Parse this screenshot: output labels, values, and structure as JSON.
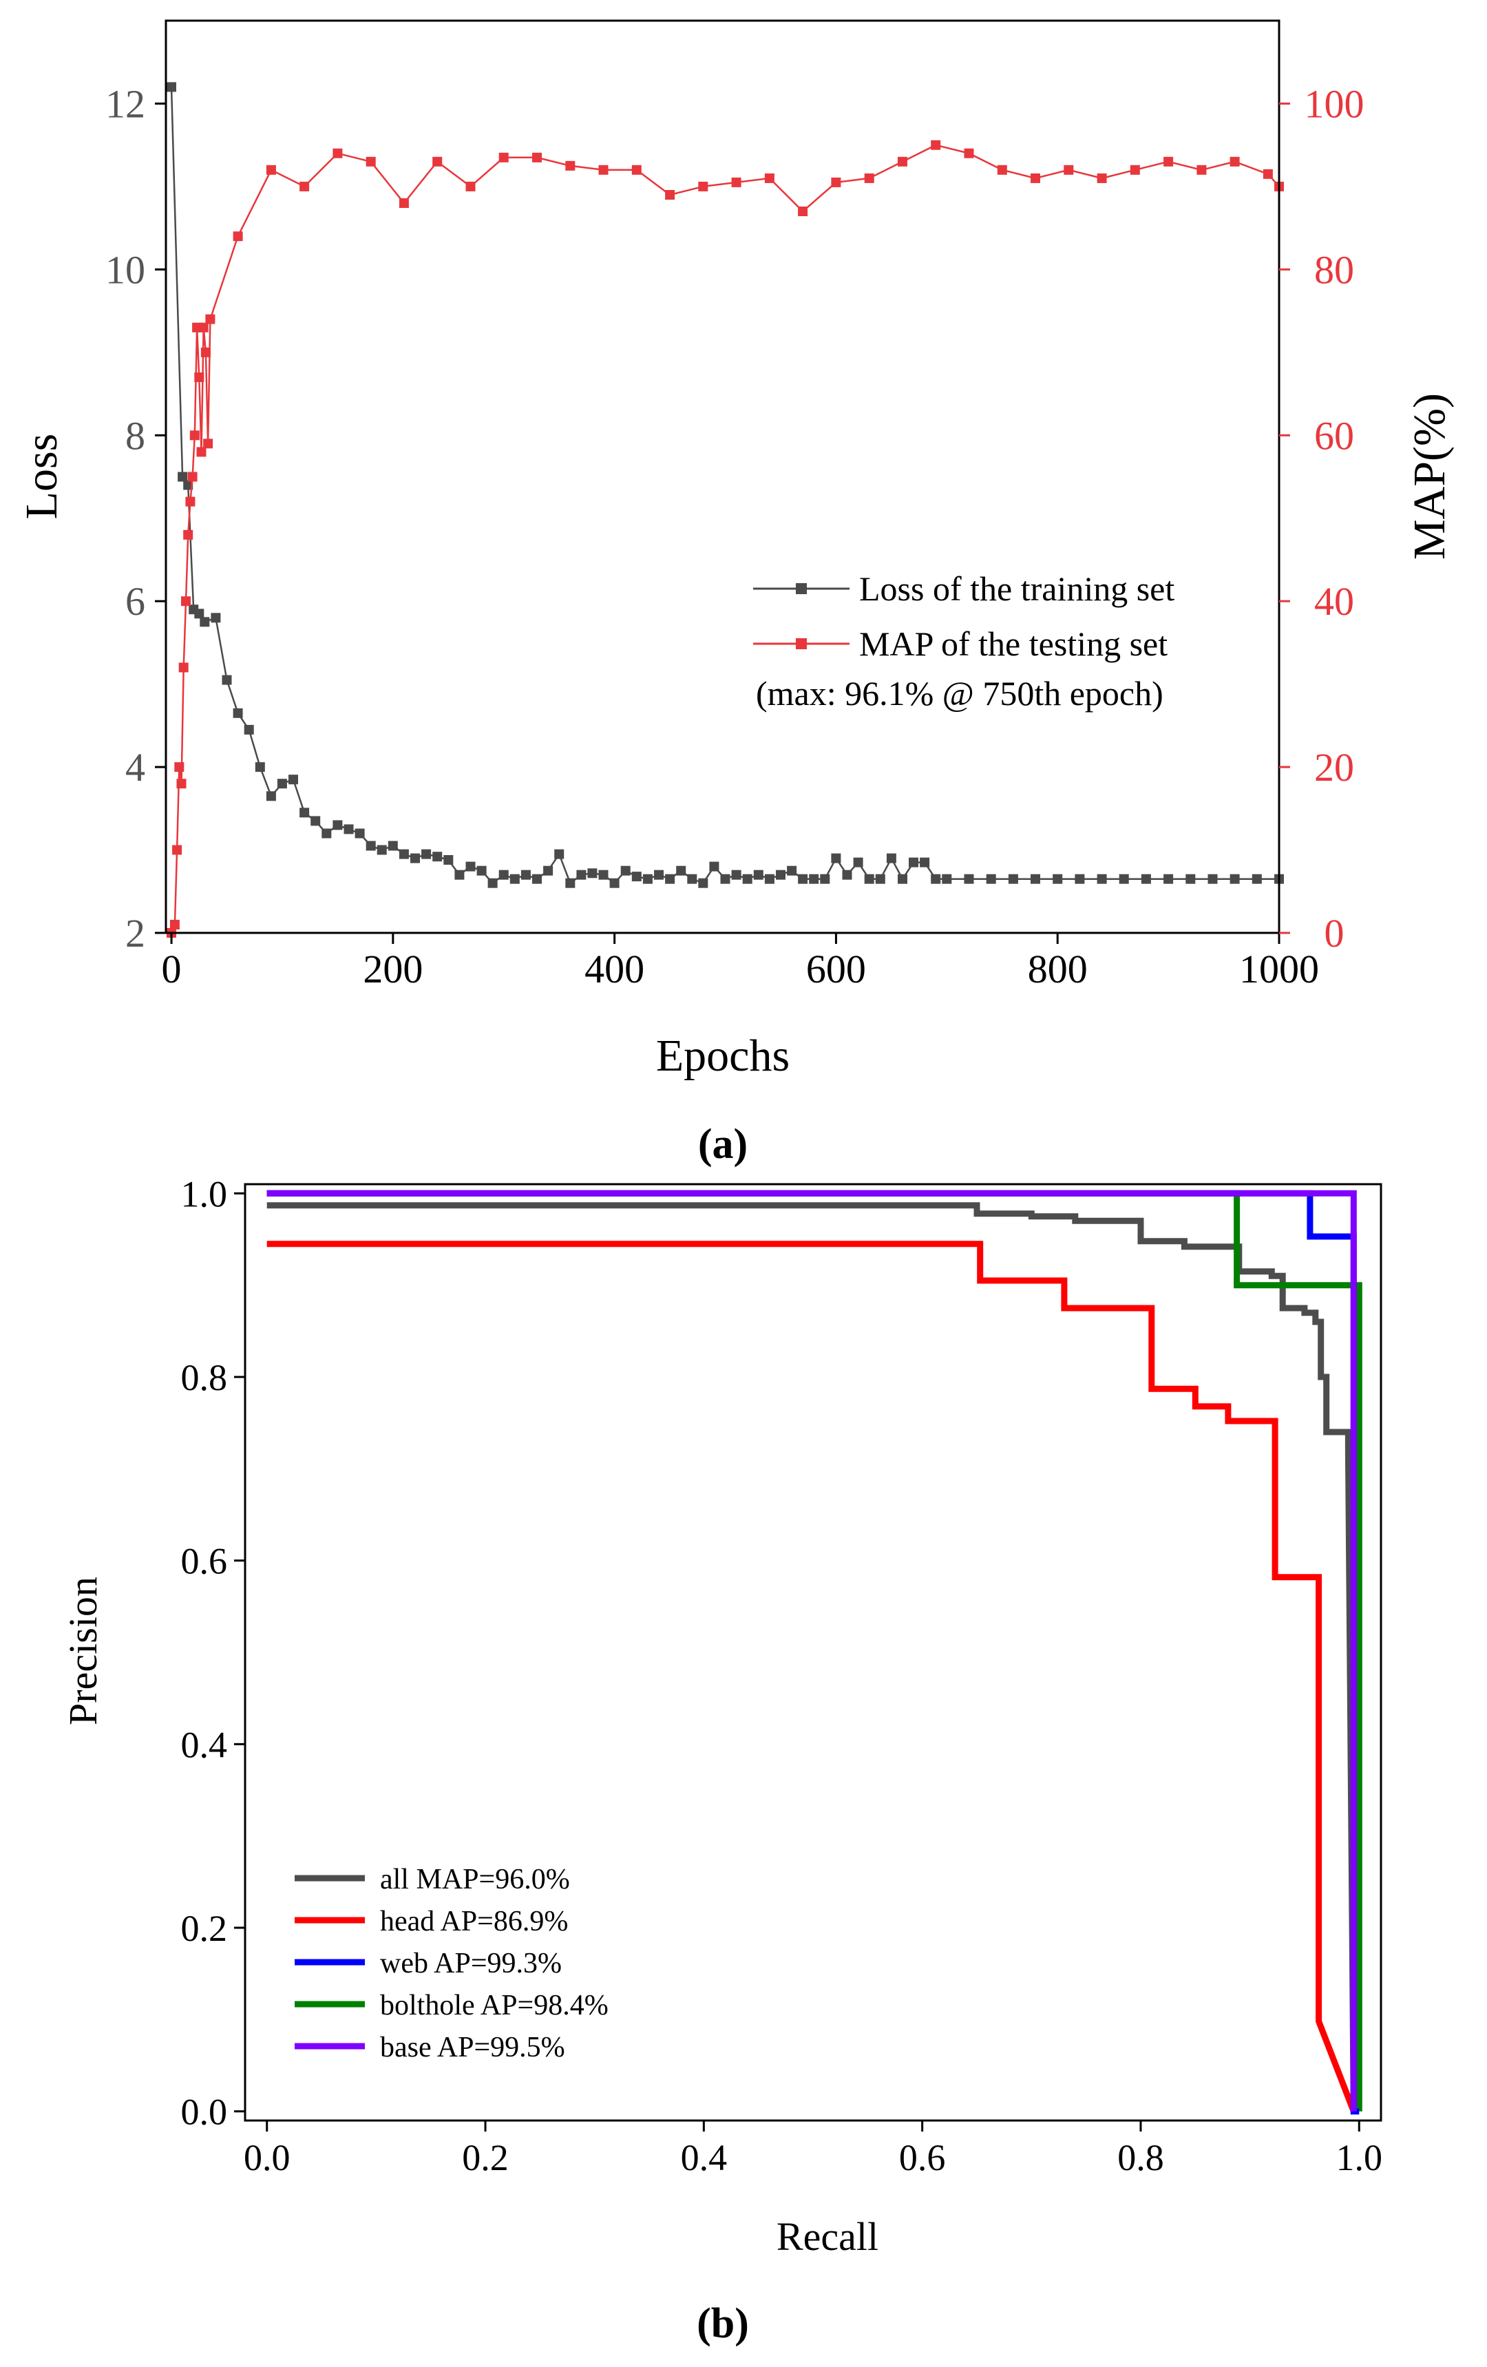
{
  "panel_labels": {
    "a": "(a)",
    "b": "(b)"
  },
  "colors": {
    "loss": "#4a4a4a",
    "map": "#e8373c",
    "all": "#4d4d4d",
    "head": "#ff0000",
    "web": "#0000ff",
    "bolthole": "#008000",
    "base": "#7f00ff"
  },
  "chart_data": [
    {
      "type": "line",
      "panel": "a",
      "xlabel": "Epochs",
      "ylabel_left": "Loss",
      "ylabel_right": "MAP(%)",
      "xlim": [
        -5,
        1000
      ],
      "ylim_left": [
        2,
        13
      ],
      "ylim_right": [
        0,
        110
      ],
      "x_ticks": [
        "0",
        "200",
        "400",
        "600",
        "800",
        "1000"
      ],
      "y_ticks_left": [
        "2",
        "4",
        "6",
        "8",
        "10",
        "12"
      ],
      "y_ticks_right": [
        "0",
        "20",
        "40",
        "60",
        "80",
        "100"
      ],
      "legend": {
        "position": "right",
        "entries": [
          "Loss of the training set",
          "MAP of the testing set"
        ],
        "note": "(max: 96.1% @ 750th epoch)"
      },
      "series": [
        {
          "name": "Loss of the training set",
          "axis": "left",
          "x": [
            0,
            10,
            15,
            20,
            25,
            30,
            40,
            50,
            60,
            70,
            80,
            90,
            100,
            110,
            120,
            130,
            140,
            150,
            160,
            170,
            180,
            190,
            200,
            210,
            220,
            230,
            240,
            250,
            260,
            270,
            280,
            290,
            300,
            310,
            320,
            330,
            340,
            350,
            360,
            370,
            380,
            390,
            400,
            410,
            420,
            430,
            440,
            450,
            460,
            470,
            480,
            490,
            500,
            510,
            520,
            530,
            540,
            550,
            560,
            570,
            580,
            590,
            600,
            610,
            620,
            630,
            640,
            650,
            660,
            670,
            680,
            690,
            700,
            720,
            740,
            760,
            780,
            800,
            820,
            840,
            860,
            880,
            900,
            920,
            940,
            960,
            980,
            1000
          ],
          "y": [
            12.2,
            7.5,
            7.4,
            5.9,
            5.85,
            5.75,
            5.8,
            5.05,
            4.65,
            4.45,
            4.0,
            3.65,
            3.8,
            3.85,
            3.45,
            3.35,
            3.2,
            3.3,
            3.25,
            3.2,
            3.05,
            3.0,
            3.05,
            2.95,
            2.9,
            2.95,
            2.92,
            2.88,
            2.7,
            2.8,
            2.75,
            2.6,
            2.7,
            2.65,
            2.7,
            2.65,
            2.75,
            2.95,
            2.6,
            2.7,
            2.72,
            2.7,
            2.6,
            2.75,
            2.68,
            2.65,
            2.7,
            2.65,
            2.75,
            2.65,
            2.6,
            2.8,
            2.65,
            2.7,
            2.65,
            2.7,
            2.65,
            2.7,
            2.75,
            2.65,
            2.65,
            2.65,
            2.9,
            2.7,
            2.85,
            2.65,
            2.65,
            2.9,
            2.65,
            2.85,
            2.85,
            2.65,
            2.65,
            2.65,
            2.65,
            2.65,
            2.65,
            2.65,
            2.65,
            2.65,
            2.65,
            2.65,
            2.65,
            2.65,
            2.65,
            2.65,
            2.65,
            2.65
          ]
        },
        {
          "name": "MAP of the testing set",
          "axis": "right",
          "x": [
            0,
            3,
            5,
            7,
            9,
            11,
            13,
            15,
            17,
            19,
            21,
            23,
            25,
            27,
            29,
            31,
            33,
            35,
            60,
            90,
            120,
            150,
            180,
            210,
            240,
            270,
            300,
            330,
            360,
            390,
            420,
            450,
            480,
            510,
            540,
            570,
            600,
            630,
            660,
            690,
            720,
            750,
            780,
            810,
            840,
            870,
            900,
            930,
            960,
            990,
            1000
          ],
          "y": [
            0,
            1,
            10,
            20,
            18,
            32,
            40,
            48,
            52,
            55,
            60,
            73,
            67,
            58,
            73,
            70,
            59,
            74,
            84,
            92,
            90,
            94,
            93,
            88,
            93,
            90,
            93.5,
            93.5,
            92.5,
            92,
            92,
            89,
            90,
            90.5,
            91,
            87,
            90.5,
            91,
            93,
            95,
            94,
            92,
            91,
            92,
            91,
            92,
            93,
            92,
            93,
            91.5,
            90
          ]
        }
      ]
    },
    {
      "type": "line",
      "panel": "b",
      "xlabel": "Recall",
      "ylabel": "Precision",
      "xlim": [
        -0.02,
        1.02
      ],
      "ylim": [
        -0.01,
        1.01
      ],
      "x_ticks": [
        "0.0",
        "0.2",
        "0.4",
        "0.6",
        "0.8",
        "1.0"
      ],
      "y_ticks": [
        "0.0",
        "0.2",
        "0.4",
        "0.6",
        "0.8",
        "1.0"
      ],
      "legend": {
        "position": "bottom-left"
      },
      "series": [
        {
          "name": "all MAP=96.0%",
          "key": "all",
          "x": [
            0.0,
            0.65,
            0.65,
            0.7,
            0.7,
            0.74,
            0.74,
            0.8,
            0.8,
            0.84,
            0.84,
            0.89,
            0.89,
            0.92,
            0.92,
            0.93,
            0.93,
            0.95,
            0.95,
            0.96,
            0.96,
            0.965,
            0.965,
            0.97,
            0.97,
            0.99,
            0.99,
            0.995
          ],
          "y": [
            0.987,
            0.987,
            0.978,
            0.978,
            0.975,
            0.975,
            0.97,
            0.97,
            0.948,
            0.948,
            0.942,
            0.942,
            0.915,
            0.915,
            0.91,
            0.91,
            0.875,
            0.875,
            0.87,
            0.87,
            0.86,
            0.86,
            0.8,
            0.8,
            0.74,
            0.74,
            0.718,
            0.0
          ]
        },
        {
          "name": "head AP=86.9%",
          "key": "head",
          "x": [
            0.0,
            0.653,
            0.653,
            0.73,
            0.73,
            0.81,
            0.81,
            0.85,
            0.85,
            0.88,
            0.88,
            0.923,
            0.923,
            0.963,
            0.963,
            0.995
          ],
          "y": [
            0.945,
            0.945,
            0.905,
            0.905,
            0.875,
            0.875,
            0.787,
            0.787,
            0.768,
            0.768,
            0.752,
            0.752,
            0.582,
            0.582,
            0.098,
            0.0
          ]
        },
        {
          "name": "web AP=99.3%",
          "key": "web",
          "x": [
            0.0,
            0.955,
            0.955,
            0.995,
            0.995,
            1.0
          ],
          "y": [
            1.0,
            1.0,
            0.953,
            0.953,
            0.0,
            0.0
          ]
        },
        {
          "name": "bolthole AP=98.4%",
          "key": "bolthole",
          "x": [
            0.0,
            0.888,
            0.888,
            1.0,
            1.0
          ],
          "y": [
            1.0,
            1.0,
            0.9,
            0.9,
            0.0
          ]
        },
        {
          "name": "base AP=99.5%",
          "key": "base",
          "x": [
            0.0,
            0.995,
            0.995
          ],
          "y": [
            1.0,
            1.0,
            0.0
          ]
        }
      ]
    }
  ]
}
